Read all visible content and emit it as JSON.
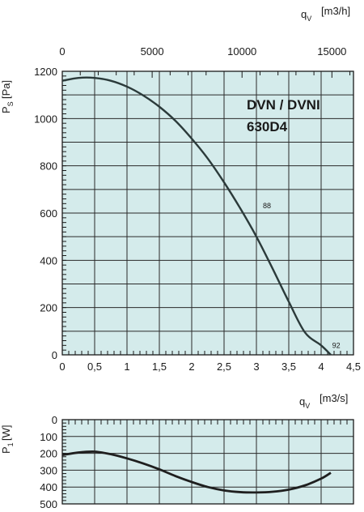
{
  "chart_data": [
    {
      "type": "line",
      "title_lines": [
        "DVN / DVNI",
        "630D4"
      ],
      "x_unit": "[m3/s]",
      "ylim": [
        0,
        1200
      ],
      "xlim": [
        0,
        4.5
      ],
      "x_ticks": [
        "0",
        "0,5",
        "1",
        "1,5",
        "2",
        "2,5",
        "3",
        "3,5",
        "4",
        "4,5"
      ],
      "y_ticks": [
        "0",
        "200",
        "400",
        "600",
        "800",
        "1000",
        "1200"
      ],
      "top_axis": {
        "unit": "[m3/h]",
        "ticks": [
          "0",
          "5000",
          "10000",
          "15000"
        ],
        "tick_values_m3s": [
          0,
          1.3889,
          2.7778,
          4.1667
        ]
      },
      "series": [
        {
          "x": [
            0,
            0.25,
            0.5,
            0.75,
            1.0,
            1.25,
            1.5,
            1.75,
            2.0,
            2.25,
            2.5,
            2.75,
            3.0,
            3.25,
            3.5,
            3.75,
            4.0,
            4.15
          ],
          "y": [
            1160,
            1172,
            1172,
            1160,
            1135,
            1098,
            1050,
            990,
            915,
            830,
            730,
            620,
            500,
            365,
            225,
            95,
            40,
            0
          ]
        }
      ],
      "annotations": [
        {
          "text": "88",
          "x": 3.05,
          "y": 620
        },
        {
          "text": "92",
          "x": 4.12,
          "y": 30
        }
      ]
    },
    {
      "type": "line",
      "y_unit": "[W]",
      "x_unit": "[m3/s]",
      "ylim": [
        0,
        500
      ],
      "xlim": [
        0,
        4.5
      ],
      "y_reversed": true,
      "y_ticks": [
        "0",
        "100",
        "200",
        "300",
        "400",
        "500"
      ],
      "series": [
        {
          "x": [
            0,
            0.25,
            0.5,
            0.75,
            1.0,
            1.25,
            1.5,
            1.75,
            2.0,
            2.25,
            2.5,
            2.75,
            3.0,
            3.25,
            3.5,
            3.75,
            4.0,
            4.15
          ],
          "y": [
            210,
            195,
            190,
            205,
            230,
            260,
            295,
            335,
            370,
            400,
            420,
            430,
            432,
            428,
            415,
            390,
            350,
            315
          ]
        }
      ]
    }
  ]
}
